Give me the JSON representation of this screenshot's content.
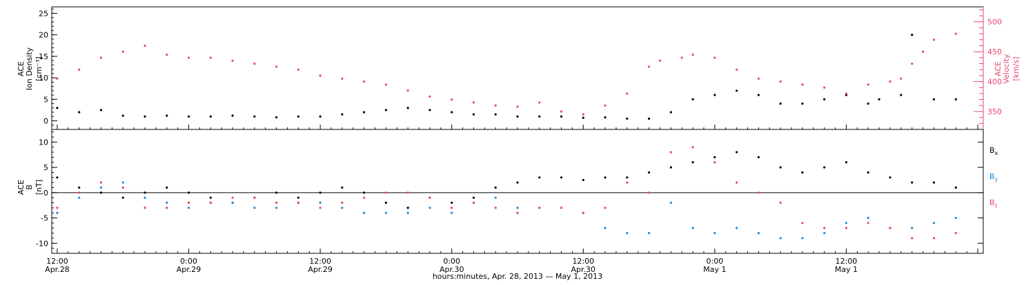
{
  "chart_data": [
    {
      "type": "scatter",
      "panel": "top",
      "ylabel_left": [
        "ACE",
        "Ion Density",
        "[cm⁻³]"
      ],
      "ylabel_right": [
        "ACE",
        "Velocity",
        "[km/s]"
      ],
      "left_ylim": [
        -2,
        26.5
      ],
      "left_ticks": [
        0,
        5,
        10,
        15,
        20,
        25
      ],
      "left_tick_labels": [
        "0",
        "5",
        "10",
        "15",
        "20",
        "25"
      ],
      "right_ylim": [
        320,
        525
      ],
      "right_ticks": [
        350,
        400,
        450,
        500
      ],
      "right_tick_labels": [
        "350",
        "400",
        "450",
        "500"
      ],
      "xlim_hours": [
        -0.5,
        84.5
      ],
      "series": [
        {
          "axis": "left",
          "color": "#000000",
          "x": [
            0,
            2,
            4,
            6,
            8,
            10,
            12,
            14,
            16,
            18,
            20,
            22,
            24,
            26,
            28,
            30,
            32,
            34,
            36,
            38,
            40,
            42,
            44,
            46,
            48,
            50,
            52,
            54,
            56,
            58,
            60,
            62,
            64,
            66,
            68,
            70,
            72,
            74,
            75,
            77,
            78,
            80,
            82
          ],
          "y": [
            3,
            2,
            2.5,
            1.2,
            1,
            1.2,
            1,
            1,
            1.2,
            1,
            0.8,
            1,
            1,
            1.5,
            2,
            2.5,
            3,
            2.5,
            2,
            1.5,
            1.5,
            1,
            1,
            1,
            0.7,
            0.8,
            0.5,
            0.5,
            2,
            5,
            6,
            7,
            6,
            4,
            4,
            5,
            6,
            4,
            5,
            6,
            20,
            5,
            5
          ]
        },
        {
          "axis": "right",
          "color": "#e8456d",
          "x": [
            0,
            2,
            4,
            6,
            8,
            10,
            12,
            14,
            16,
            18,
            20,
            22,
            24,
            26,
            28,
            30,
            32,
            34,
            36,
            38,
            40,
            42,
            44,
            46,
            48,
            50,
            52,
            54,
            55,
            57,
            58,
            60,
            62,
            64,
            66,
            68,
            70,
            72,
            74,
            76,
            77,
            78,
            79,
            80,
            82
          ],
          "y": [
            405,
            420,
            440,
            450,
            460,
            445,
            440,
            440,
            435,
            430,
            425,
            420,
            410,
            405,
            400,
            395,
            385,
            375,
            370,
            365,
            360,
            358,
            365,
            350,
            345,
            360,
            380,
            425,
            435,
            440,
            445,
            440,
            420,
            405,
            400,
            395,
            390,
            380,
            395,
            400,
            405,
            430,
            450,
            470,
            480
          ]
        }
      ]
    },
    {
      "type": "scatter",
      "panel": "bottom",
      "ylabel_left": [
        "ACE",
        "B",
        "[nT]"
      ],
      "ylim": [
        -12,
        12.5
      ],
      "yticks": [
        -10,
        -5,
        0,
        5,
        10
      ],
      "ytick_labels": [
        "-10",
        "-5",
        "0",
        "5",
        "10"
      ],
      "xlim_hours": [
        -0.5,
        84.5
      ],
      "series": [
        {
          "name_main": "B",
          "name_sub": "x",
          "color": "#000000",
          "x": [
            0,
            2,
            4,
            6,
            8,
            10,
            12,
            14,
            16,
            18,
            20,
            22,
            24,
            26,
            28,
            30,
            32,
            34,
            36,
            38,
            40,
            42,
            44,
            46,
            48,
            50,
            52,
            54,
            56,
            58,
            60,
            62,
            64,
            66,
            68,
            70,
            72,
            74,
            76,
            78,
            80,
            82
          ],
          "y": [
            3,
            1,
            0,
            -1,
            0,
            1,
            0,
            -1,
            -2,
            -1,
            0,
            -1,
            0,
            1,
            0,
            -2,
            -3,
            -1,
            -2,
            -1,
            1,
            2,
            3,
            3,
            2.5,
            3,
            3,
            4,
            5,
            6,
            7,
            8,
            7,
            5,
            4,
            5,
            6,
            4,
            3,
            2,
            2,
            1
          ]
        },
        {
          "name_main": "B",
          "name_sub": "y",
          "color": "#1e88d6",
          "x": [
            0,
            2,
            4,
            6,
            8,
            10,
            12,
            14,
            16,
            18,
            20,
            22,
            24,
            26,
            28,
            30,
            32,
            34,
            36,
            38,
            40,
            42,
            44,
            46,
            48,
            50,
            52,
            54,
            56,
            58,
            60,
            62,
            64,
            66,
            68,
            70,
            72,
            74,
            76,
            78,
            80,
            82
          ],
          "y": [
            -4,
            -1,
            1,
            2,
            -1,
            -2,
            -3,
            -2,
            -2,
            -3,
            -3,
            -2,
            -2,
            -3,
            -4,
            -4,
            -4,
            -3,
            -4,
            -2,
            -1,
            -3,
            -3,
            -3,
            -4,
            -7,
            -8,
            -8,
            -2,
            -7,
            -8,
            -7,
            -8,
            -9,
            -9,
            -8,
            -6,
            -5,
            -7,
            -7,
            -6,
            -5
          ]
        },
        {
          "name_main": "B",
          "name_sub": "z",
          "color": "#e8456d",
          "x": [
            0,
            2,
            4,
            6,
            8,
            10,
            12,
            14,
            16,
            18,
            20,
            22,
            24,
            26,
            28,
            30,
            32,
            34,
            36,
            38,
            40,
            42,
            44,
            46,
            48,
            50,
            52,
            54,
            56,
            58,
            60,
            62,
            64,
            66,
            68,
            70,
            72,
            74,
            76,
            78,
            80,
            82
          ],
          "y": [
            -3,
            0,
            2,
            1,
            -3,
            -3,
            -2,
            -2,
            -1,
            -1,
            -2,
            -2,
            -3,
            -2,
            -1,
            0,
            0,
            -1,
            -3,
            -2,
            -3,
            -4,
            -3,
            -3,
            -4,
            -3,
            2,
            0,
            8,
            9,
            6,
            2,
            0,
            -2,
            -6,
            -7,
            -7,
            -6,
            -7,
            -9,
            -9,
            -8
          ]
        }
      ]
    }
  ],
  "x_axis": {
    "tick_hours": [
      0,
      12,
      24,
      36,
      48,
      60,
      72,
      84
    ],
    "tick_labels_time": [
      "12:00",
      "0:00",
      "12:00",
      "0:00",
      "12:00",
      "0:00",
      "12:00",
      ""
    ],
    "tick_labels_date": [
      "Apr.28",
      "Apr.29",
      "Apr.29",
      "Apr.30",
      "Apr.30",
      "May 1",
      "May 1",
      ""
    ],
    "minor_step_hours": 1,
    "xlabel": "hours:minutes, Apr. 28, 2013 — May  1, 2013"
  }
}
